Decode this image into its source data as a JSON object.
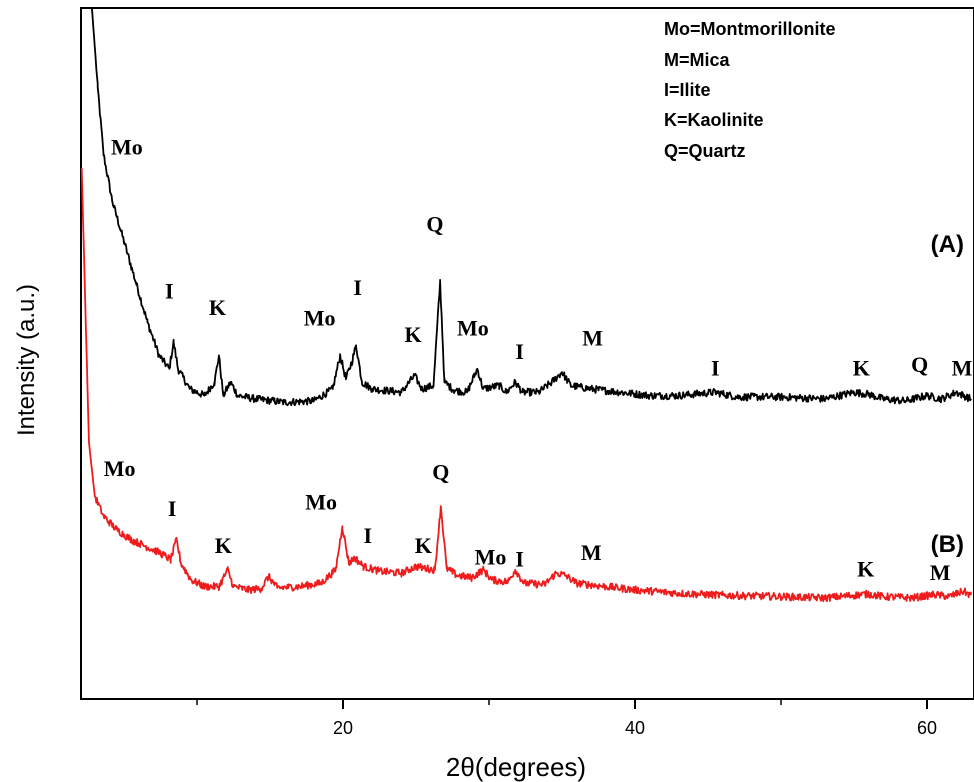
{
  "chart_data": {
    "type": "line",
    "xlabel": "2θ(degrees)",
    "ylabel": "Intensity (a.u.)",
    "xlim": [
      2,
      63
    ],
    "ylim": [
      0,
      100
    ],
    "xticks": [
      20,
      40,
      60
    ],
    "xtick_labels": [
      "20",
      "40",
      "60"
    ],
    "legend_entries": [
      "Mo=Montmorillonite",
      "M=Mica",
      "I=Ilite",
      "K=Kaolinite",
      "Q=Quartz"
    ],
    "legend_placement": "top-right",
    "series": [
      {
        "name": "(A)",
        "color": "#000000",
        "points": [
          [
            2.8,
            100
          ],
          [
            3.2,
            88
          ],
          [
            3.6,
            78
          ],
          [
            4.2,
            71
          ],
          [
            5,
            65
          ],
          [
            5.8,
            59
          ],
          [
            6.6,
            53
          ],
          [
            7.4,
            48
          ],
          [
            8.1,
            46
          ],
          [
            8.4,
            50
          ],
          [
            8.7,
            46
          ],
          [
            9.5,
            43
          ],
          [
            10.5,
            42
          ],
          [
            11.2,
            44
          ],
          [
            11.5,
            48
          ],
          [
            11.8,
            42
          ],
          [
            12.3,
            44
          ],
          [
            12.8,
            42
          ],
          [
            14,
            41.5
          ],
          [
            16,
            41
          ],
          [
            18,
            41.2
          ],
          [
            19.3,
            43
          ],
          [
            19.8,
            48
          ],
          [
            20.2,
            44.5
          ],
          [
            20.6,
            47
          ],
          [
            20.9,
            49.5
          ],
          [
            21.3,
            44
          ],
          [
            22,
            43
          ],
          [
            24,
            42.5
          ],
          [
            24.9,
            45
          ],
          [
            25.4,
            43
          ],
          [
            26.2,
            43.5
          ],
          [
            26.65,
            59
          ],
          [
            26.95,
            44
          ],
          [
            27.6,
            42.8
          ],
          [
            28.5,
            42.5
          ],
          [
            29.2,
            46
          ],
          [
            29.6,
            43
          ],
          [
            30.7,
            43.5
          ],
          [
            31.2,
            42.5
          ],
          [
            31.8,
            44
          ],
          [
            32.3,
            42.5
          ],
          [
            33.4,
            42.5
          ],
          [
            34.3,
            44
          ],
          [
            35,
            45.5
          ],
          [
            35.6,
            43.5
          ],
          [
            37,
            43
          ],
          [
            39,
            42.5
          ],
          [
            41,
            42
          ],
          [
            43,
            42
          ],
          [
            45.5,
            42.5
          ],
          [
            47,
            41.8
          ],
          [
            50,
            41.8
          ],
          [
            53,
            41.5
          ],
          [
            55,
            42.5
          ],
          [
            56,
            42.2
          ],
          [
            57,
            41.5
          ],
          [
            58.5,
            41.2
          ],
          [
            60,
            42
          ],
          [
            61,
            41.5
          ],
          [
            62,
            42.5
          ],
          [
            63,
            41.5
          ]
        ]
      },
      {
        "name": "(B)",
        "color": "#ee1c1c",
        "points": [
          [
            2.1,
            76
          ],
          [
            2.6,
            35
          ],
          [
            3,
            27
          ],
          [
            3.6,
            24
          ],
          [
            4.5,
            22
          ],
          [
            5.5,
            20.5
          ],
          [
            6.5,
            19.5
          ],
          [
            7.5,
            18.5
          ],
          [
            8.2,
            17.5
          ],
          [
            8.6,
            20.5
          ],
          [
            8.9,
            17
          ],
          [
            9.6,
            14.5
          ],
          [
            10.5,
            13.5
          ],
          [
            11.5,
            13.5
          ],
          [
            12.1,
            16
          ],
          [
            12.5,
            13.5
          ],
          [
            13.5,
            13
          ],
          [
            14.4,
            13.2
          ],
          [
            14.9,
            15
          ],
          [
            15.5,
            13.3
          ],
          [
            17,
            13.5
          ],
          [
            18.5,
            14
          ],
          [
            19.5,
            16
          ],
          [
            19.95,
            22.5
          ],
          [
            20.4,
            17
          ],
          [
            20.8,
            17.8
          ],
          [
            21.4,
            16.5
          ],
          [
            22.5,
            15.8
          ],
          [
            24,
            15.5
          ],
          [
            25,
            16.5
          ],
          [
            25.7,
            16.2
          ],
          [
            26.3,
            16
          ],
          [
            26.7,
            25.5
          ],
          [
            27.1,
            16.2
          ],
          [
            27.8,
            15.2
          ],
          [
            28.8,
            14.8
          ],
          [
            29.6,
            16
          ],
          [
            30.2,
            14.5
          ],
          [
            31.3,
            14.2
          ],
          [
            31.8,
            16
          ],
          [
            32.4,
            14
          ],
          [
            33.8,
            13.8
          ],
          [
            34.6,
            15.5
          ],
          [
            35.2,
            15.2
          ],
          [
            36,
            14
          ],
          [
            38,
            13.5
          ],
          [
            40,
            13
          ],
          [
            43,
            12.5
          ],
          [
            46,
            12.2
          ],
          [
            50,
            12
          ],
          [
            53,
            11.8
          ],
          [
            55,
            12.2
          ],
          [
            56,
            12.4
          ],
          [
            57,
            12
          ],
          [
            59,
            11.8
          ],
          [
            60.5,
            12.3
          ],
          [
            61.5,
            12
          ],
          [
            62.5,
            12.8
          ],
          [
            63,
            12.2
          ]
        ]
      }
    ],
    "panel_labels": [
      "(A)",
      "(B)"
    ],
    "annotations": [
      {
        "text": "Mo",
        "series": "(A)",
        "x": 5.2,
        "y": 78
      },
      {
        "text": "I",
        "series": "(A)",
        "x": 8.1,
        "y": 56.5
      },
      {
        "text": "K",
        "series": "(A)",
        "x": 11.4,
        "y": 54
      },
      {
        "text": "Mo",
        "series": "(A)",
        "x": 18.4,
        "y": 52.5
      },
      {
        "text": "I",
        "series": "(A)",
        "x": 21,
        "y": 57
      },
      {
        "text": "Q",
        "series": "(A)",
        "x": 26.3,
        "y": 66.5
      },
      {
        "text": "K",
        "series": "(A)",
        "x": 24.8,
        "y": 50
      },
      {
        "text": "Mo",
        "series": "(A)",
        "x": 28.9,
        "y": 51
      },
      {
        "text": "I",
        "series": "(A)",
        "x": 32.1,
        "y": 47.5
      },
      {
        "text": "M",
        "series": "(A)",
        "x": 37.1,
        "y": 49.5
      },
      {
        "text": "I",
        "series": "(A)",
        "x": 45.5,
        "y": 45
      },
      {
        "text": "K",
        "series": "(A)",
        "x": 55.5,
        "y": 45
      },
      {
        "text": "Q",
        "series": "(A)",
        "x": 59.5,
        "y": 45.5
      },
      {
        "text": "M",
        "series": "(A)",
        "x": 62.4,
        "y": 45
      },
      {
        "text": "Mo",
        "series": "(B)",
        "x": 4.7,
        "y": 30
      },
      {
        "text": "I",
        "series": "(B)",
        "x": 8.3,
        "y": 24
      },
      {
        "text": "K",
        "series": "(B)",
        "x": 11.8,
        "y": 18.5
      },
      {
        "text": "Mo",
        "series": "(B)",
        "x": 18.5,
        "y": 25
      },
      {
        "text": "I",
        "series": "(B)",
        "x": 21.7,
        "y": 20
      },
      {
        "text": "Q",
        "series": "(B)",
        "x": 26.7,
        "y": 29.5
      },
      {
        "text": "K",
        "series": "(B)",
        "x": 25.5,
        "y": 18.5
      },
      {
        "text": "Mo",
        "series": "(B)",
        "x": 30.1,
        "y": 16.8
      },
      {
        "text": "I",
        "series": "(B)",
        "x": 32.1,
        "y": 16.5
      },
      {
        "text": "M",
        "series": "(B)",
        "x": 37,
        "y": 17.5
      },
      {
        "text": "K",
        "series": "(B)",
        "x": 55.8,
        "y": 15
      },
      {
        "text": "M",
        "series": "(B)",
        "x": 60.9,
        "y": 14.5
      }
    ]
  }
}
